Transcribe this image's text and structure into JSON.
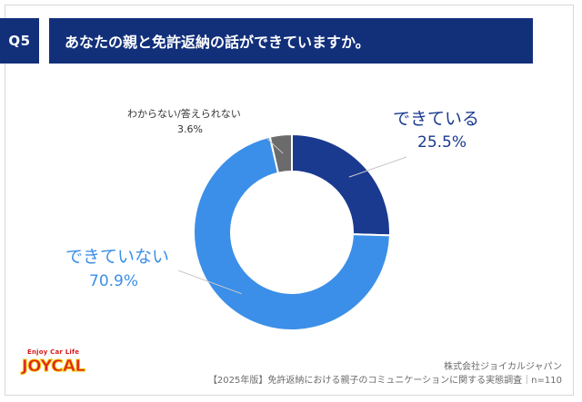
{
  "header": {
    "badge": "Q5",
    "question": "あなたの親と免許返納の話ができていますか。"
  },
  "chart_data": {
    "type": "pie",
    "donut": true,
    "categories": [
      "できている",
      "できていない",
      "わからない/答えられない"
    ],
    "values": [
      25.5,
      70.9,
      3.6
    ],
    "value_labels": [
      "25.5%",
      "70.9%",
      "3.6%"
    ],
    "colors": [
      "#1a3a8f",
      "#3b8fe8",
      "#6b6b6b"
    ]
  },
  "footer": {
    "company": "株式会社ジョイカルジャパン",
    "source": "【2025年版】免許返納における親子のコミュニケーションに関する実態調査｜n=110"
  },
  "logo": {
    "tagline": "Enjoy Car Life",
    "name": "JOYCAL"
  }
}
